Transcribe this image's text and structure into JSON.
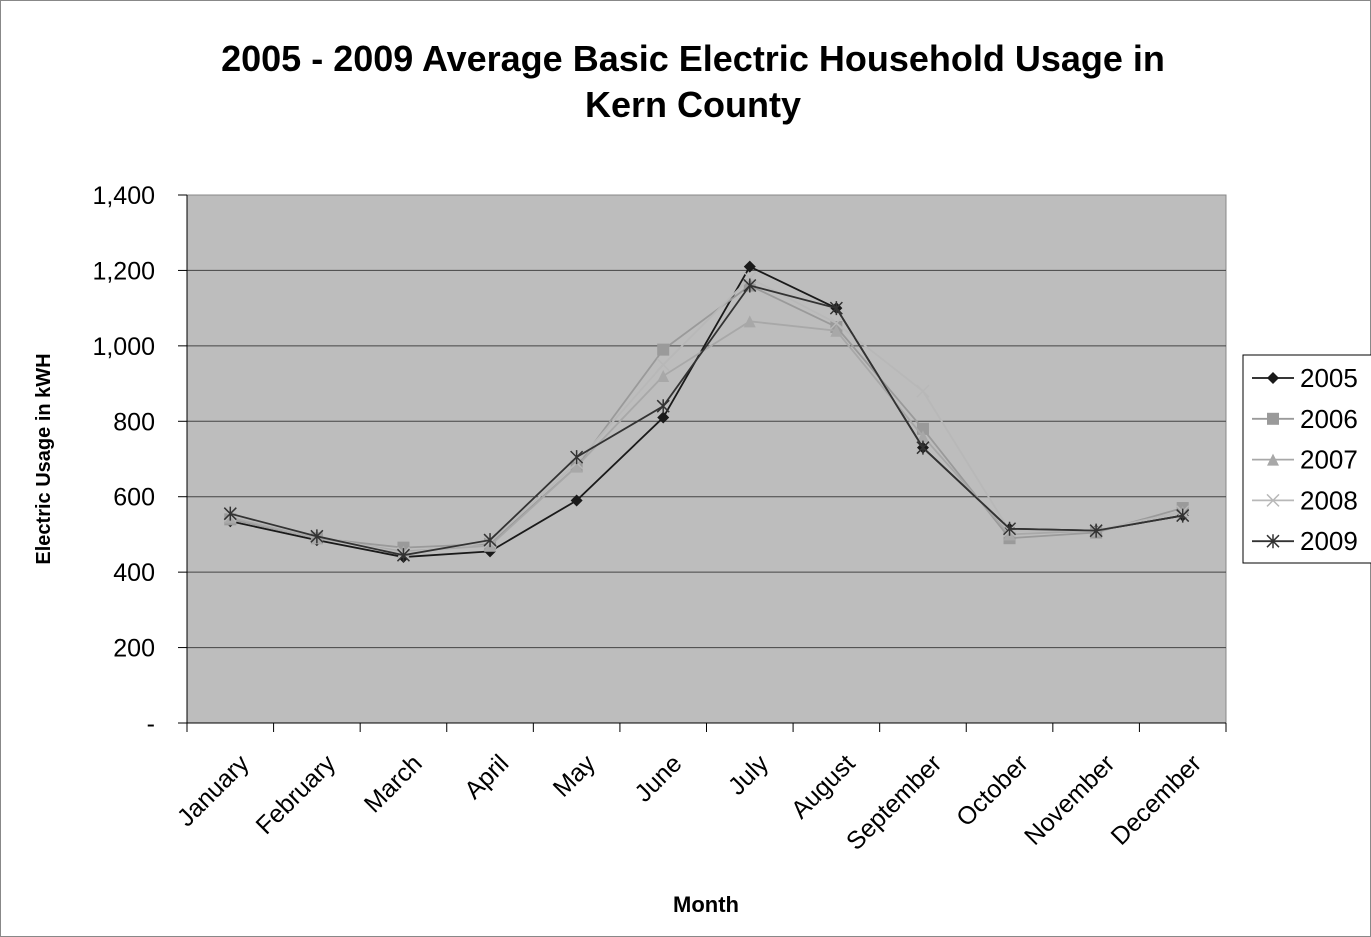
{
  "chart_data": {
    "type": "line",
    "title": "2005 - 2009 Average Basic Electric Household Usage in Kern County",
    "x_label": "Month",
    "y_label": "Electric Usage in kWH",
    "categories": [
      "January",
      "February",
      "March",
      "April",
      "May",
      "June",
      "July",
      "August",
      "September",
      "October",
      "November",
      "December"
    ],
    "series": [
      {
        "name": "2005",
        "color": "#1a1a1a",
        "marker": "diamond",
        "values": [
          535,
          485,
          440,
          455,
          590,
          810,
          1210,
          1100,
          730,
          515,
          510,
          550
        ]
      },
      {
        "name": "2006",
        "color": "#9a9a9a",
        "marker": "square",
        "values": [
          540,
          490,
          465,
          475,
          680,
          990,
          1160,
          1050,
          780,
          490,
          505,
          570
        ]
      },
      {
        "name": "2007",
        "color": "#a8a8a8",
        "marker": "triangle",
        "values": [
          545,
          490,
          455,
          470,
          680,
          920,
          1065,
          1040,
          760,
          500,
          510,
          560
        ]
      },
      {
        "name": "2008",
        "color": "#b8b8b8",
        "marker": "x",
        "values": [
          550,
          495,
          450,
          480,
          690,
          950,
          1180,
          1060,
          880,
          510,
          510,
          560
        ]
      },
      {
        "name": "2009",
        "color": "#333333",
        "marker": "asterisk",
        "values": [
          555,
          495,
          445,
          485,
          705,
          840,
          1160,
          1100,
          730,
          515,
          510,
          550
        ]
      }
    ],
    "ylim": [
      0,
      1400
    ],
    "yticks": [
      {
        "value": 0,
        "label": "-"
      },
      200,
      400,
      600,
      800,
      {
        "value": 1000,
        "label": "1,000"
      },
      {
        "value": 1200,
        "label": "1,200"
      },
      {
        "value": 1400,
        "label": "1,400"
      }
    ],
    "grid": true,
    "legend": "right"
  }
}
